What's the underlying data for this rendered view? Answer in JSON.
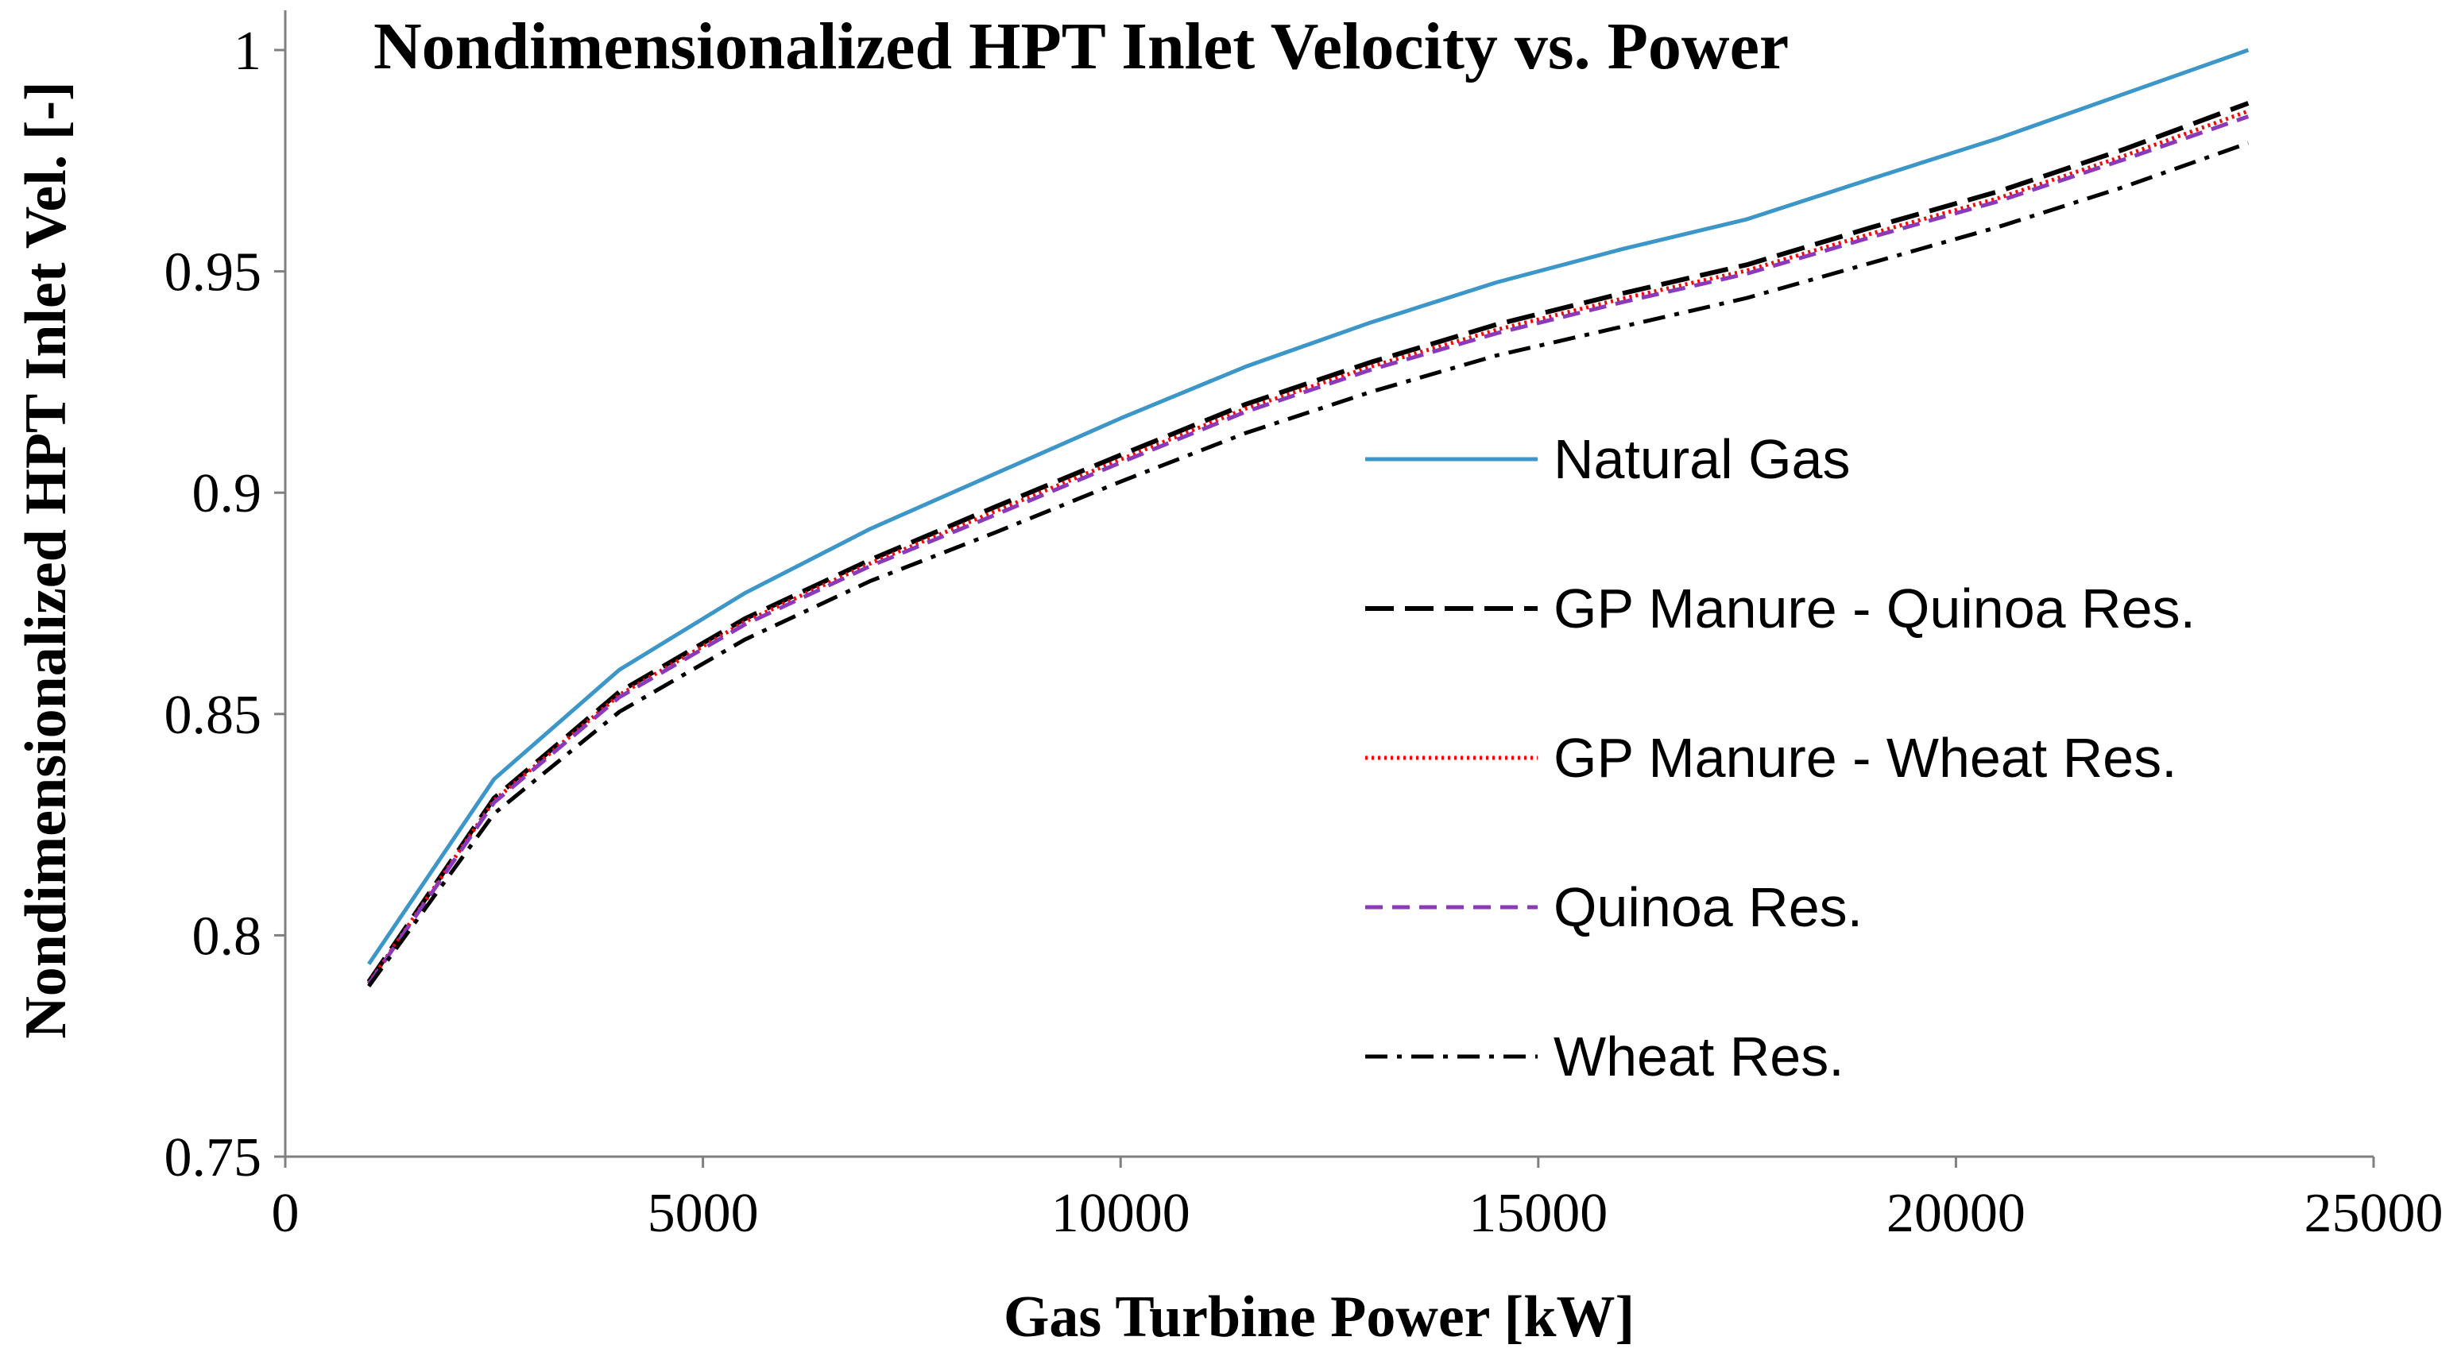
{
  "chart_data": {
    "type": "line",
    "title": "Nondimensionalized HPT Inlet Velocity vs. Power",
    "xlabel": "Gas Turbine Power [kW]",
    "ylabel": "Nondimensionalized HPT Inlet Vel. [-]",
    "xlim": [
      0,
      25000
    ],
    "ylim": [
      0.75,
      1.0
    ],
    "xticks": [
      0,
      5000,
      10000,
      15000,
      20000,
      25000
    ],
    "xtick_labels": [
      "0",
      "5000",
      "10000",
      "15000",
      "20000",
      "25000"
    ],
    "yticks": [
      0.75,
      0.8,
      0.85,
      0.9,
      0.95,
      1.0
    ],
    "ytick_labels": [
      "0.75",
      "0.8",
      "0.85",
      "0.9",
      "0.95",
      "1"
    ],
    "grid": false,
    "legend_position": "right",
    "x": [
      1000,
      2500,
      4000,
      5500,
      7000,
      8500,
      10000,
      11500,
      13000,
      14500,
      16000,
      17500,
      19000,
      20500,
      22000,
      23500
    ],
    "series": [
      {
        "name": "Natural Gas",
        "color": "#3c96c8",
        "style": "solid",
        "values": [
          0.7935,
          0.8353,
          0.86,
          0.8773,
          0.8918,
          0.9043,
          0.9168,
          0.9285,
          0.9385,
          0.9475,
          0.955,
          0.9618,
          0.971,
          0.98,
          0.99,
          1.0
        ]
      },
      {
        "name": "GP Manure - Quinoa Res.",
        "color": "#000000",
        "style": "longdash",
        "values": [
          0.7895,
          0.831,
          0.855,
          0.8715,
          0.8848,
          0.8968,
          0.9085,
          0.92,
          0.9295,
          0.938,
          0.945,
          0.9515,
          0.96,
          0.968,
          0.9775,
          0.988
        ]
      },
      {
        "name": "GP Manure - Wheat Res.",
        "color": "#ff0000",
        "style": "dotted",
        "values": [
          0.7892,
          0.8305,
          0.8543,
          0.8708,
          0.884,
          0.8958,
          0.9075,
          0.919,
          0.9285,
          0.9368,
          0.9438,
          0.9502,
          0.9586,
          0.9665,
          0.976,
          0.9862
        ]
      },
      {
        "name": "Quinoa Res.",
        "color": "#8a3ab9",
        "style": "dash",
        "values": [
          0.789,
          0.83,
          0.8538,
          0.8702,
          0.8834,
          0.895,
          0.9068,
          0.9183,
          0.9278,
          0.936,
          0.943,
          0.9495,
          0.9578,
          0.9658,
          0.9752,
          0.985
        ]
      },
      {
        "name": "Wheat Res.",
        "color": "#000000",
        "style": "dashdot",
        "values": [
          0.7885,
          0.8275,
          0.8505,
          0.8668,
          0.88,
          0.891,
          0.9025,
          0.9135,
          0.9228,
          0.931,
          0.9375,
          0.944,
          0.952,
          0.96,
          0.969,
          0.979
        ]
      }
    ]
  }
}
